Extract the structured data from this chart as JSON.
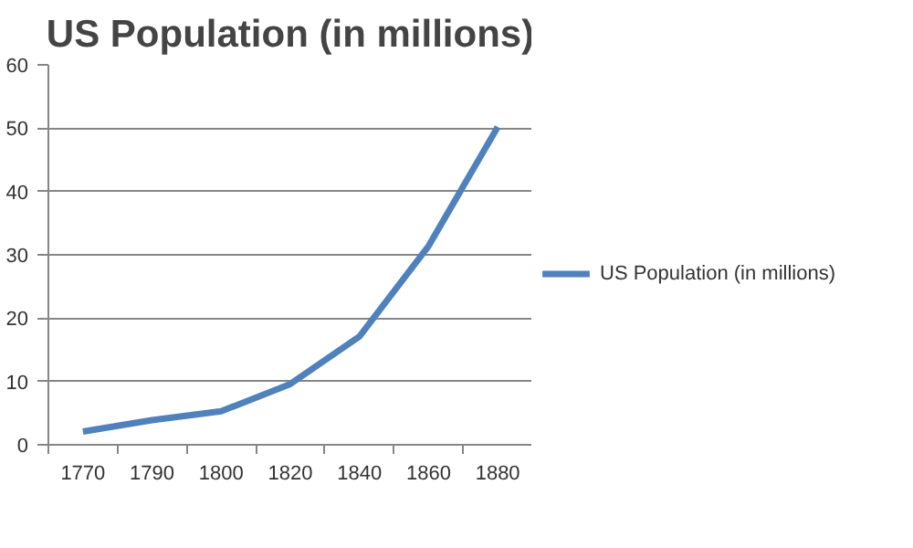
{
  "chart_data": {
    "type": "line",
    "title": "US Population (in millions)",
    "categories": [
      "1770",
      "1790",
      "1800",
      "1820",
      "1840",
      "1860",
      "1880"
    ],
    "series": [
      {
        "name": "US Population (in millions)",
        "color": "#4f81bd",
        "values": [
          2.1,
          3.9,
          5.3,
          9.6,
          17.1,
          31.4,
          50.2
        ]
      }
    ],
    "ylim": [
      0,
      60
    ],
    "yticks": [
      0,
      10,
      20,
      30,
      40,
      50,
      60
    ],
    "grid": "y",
    "legend": "right",
    "marker": "none",
    "line_style": "solid"
  }
}
